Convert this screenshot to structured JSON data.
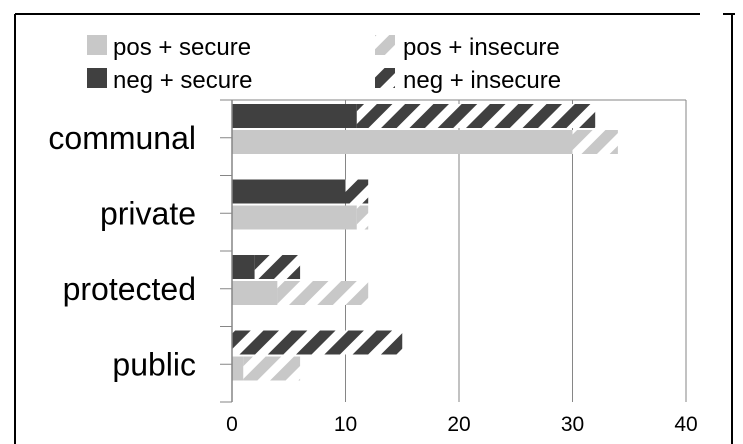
{
  "chart_data": {
    "type": "bar",
    "orientation": "horizontal",
    "stacked": true,
    "title": "",
    "xlabel": "",
    "ylabel": "",
    "categories": [
      "communal",
      "private",
      "protected",
      "public"
    ],
    "groups": [
      {
        "series": [
          {
            "name": "neg + secure",
            "values": [
              11,
              10,
              2,
              0
            ]
          },
          {
            "name": "neg + insecure",
            "values": [
              21,
              2,
              4,
              15
            ]
          }
        ]
      },
      {
        "series": [
          {
            "name": "pos + secure",
            "values": [
              30,
              11,
              4,
              1
            ]
          },
          {
            "name": "pos + insecure",
            "values": [
              4,
              1,
              8,
              5
            ]
          }
        ]
      }
    ],
    "xlim": [
      0,
      40
    ],
    "xticks": [
      "0",
      "10",
      "20",
      "30",
      "40"
    ],
    "grid": "vertical",
    "legend": [
      {
        "label": "pos + secure",
        "color": "#c8c8c8",
        "pattern": "solid"
      },
      {
        "label": "pos + insecure",
        "color": "#c8c8c8",
        "pattern": "hatched"
      },
      {
        "label": "neg + secure",
        "color": "#404040",
        "pattern": "solid"
      },
      {
        "label": "neg + insecure",
        "color": "#404040",
        "pattern": "hatched"
      }
    ],
    "legend_position": "top",
    "colors": {
      "light": "#c8c8c8",
      "dark": "#404040",
      "axis": "#868686",
      "grid": "#868686"
    }
  }
}
